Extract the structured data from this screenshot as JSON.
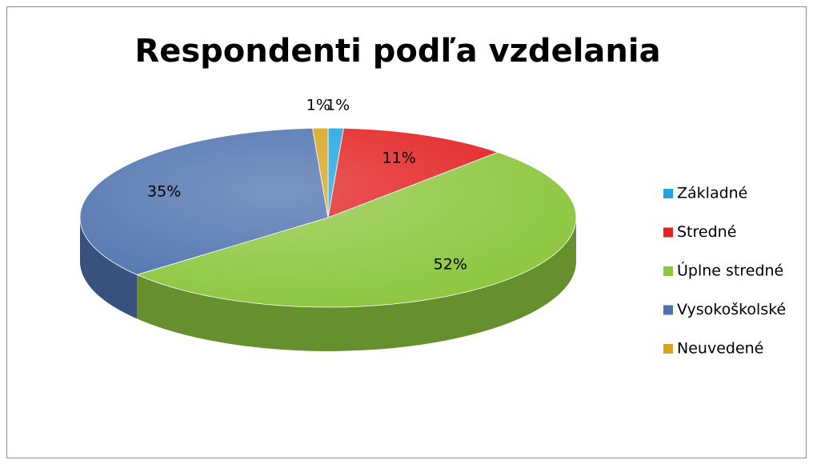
{
  "chart_data": {
    "type": "pie",
    "title": "Respondenti podľa vzdelania",
    "categories": [
      "Základné",
      "Stredné",
      "Úplne stredné",
      "Vysokoškolské",
      "Neuvedené"
    ],
    "values": [
      1,
      11,
      52,
      35,
      1
    ],
    "value_labels": [
      "1%",
      "11%",
      "52%",
      "35%",
      "1%"
    ],
    "colors": [
      "#1fa6e0",
      "#e32222",
      "#8dc63f",
      "#4e72ae",
      "#d6a41c"
    ],
    "legend": "right"
  }
}
